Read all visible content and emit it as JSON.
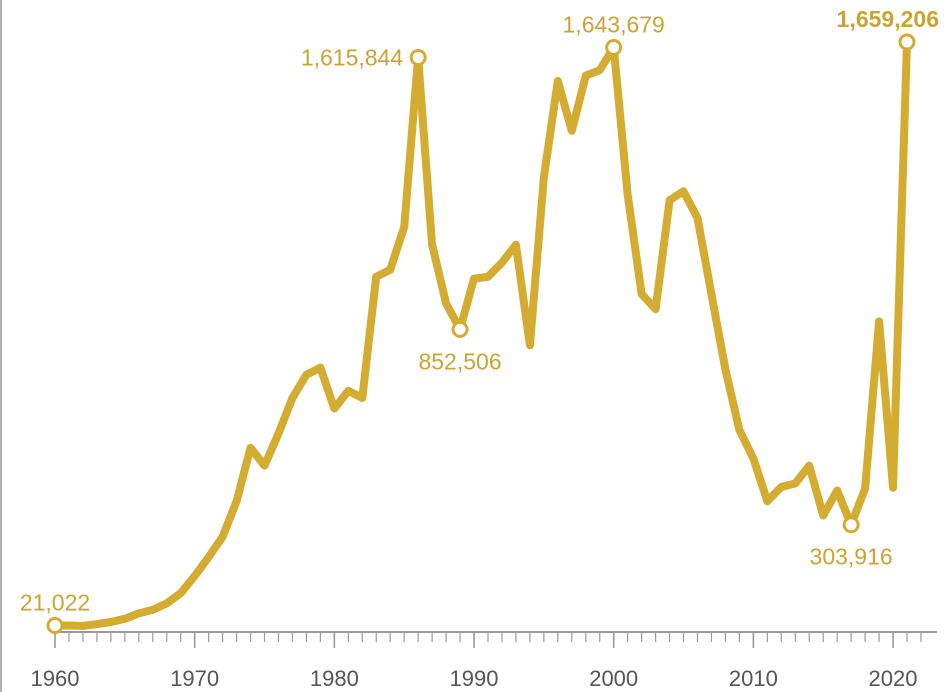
{
  "chart_data": {
    "type": "line",
    "title": "",
    "xlabel": "",
    "ylabel": "",
    "xlim": [
      1960,
      2021
    ],
    "ylim": [
      0,
      1700000
    ],
    "grid": false,
    "legend": "none",
    "colors": {
      "line": "#d4ac32",
      "axis": "#9a9a9a",
      "tick_text": "#555555",
      "annotation": "#c9a434"
    },
    "x_ticks": [
      "1960",
      "1970",
      "1980",
      "1990",
      "2000",
      "2010",
      "2020"
    ],
    "series": [
      {
        "x": [
          1960,
          1961,
          1962,
          1963,
          1964,
          1965,
          1966,
          1967,
          1968,
          1969,
          1970,
          1971,
          1972,
          1973,
          1974,
          1975,
          1976,
          1977,
          1978,
          1979,
          1980,
          1981,
          1982,
          1983,
          1984,
          1985,
          1986,
          1987,
          1988,
          1989,
          1990,
          1991,
          1992,
          1993,
          1994,
          1995,
          1996,
          1997,
          1998,
          1999,
          2000,
          2001,
          2002,
          2003,
          2004,
          2005,
          2006,
          2007,
          2008,
          2009,
          2010,
          2011,
          2012,
          2013,
          2014,
          2015,
          2016,
          2017,
          2018,
          2019,
          2020,
          2021
        ],
        "values": [
          21022,
          21000,
          20000,
          25000,
          31000,
          40000,
          55000,
          65000,
          83000,
          112000,
          160000,
          213000,
          270000,
          370000,
          520000,
          470000,
          560000,
          660000,
          725000,
          745000,
          630000,
          680000,
          660000,
          1000000,
          1020000,
          1140000,
          1615844,
          1090000,
          925000,
          852506,
          995000,
          1000000,
          1040000,
          1090000,
          808000,
          1280000,
          1550000,
          1410000,
          1565000,
          1580000,
          1643679,
          1230000,
          952000,
          909000,
          1215000,
          1240000,
          1165000,
          950000,
          740000,
          570000,
          490000,
          370000,
          410000,
          420000,
          470000,
          330000,
          400000,
          303916,
          405000,
          875000,
          408000,
          1659206
        ]
      }
    ],
    "annotations": [
      {
        "x": 1960,
        "text": "21,022",
        "position": "above",
        "bold": false
      },
      {
        "x": 1986,
        "text": "1,615,844",
        "position": "left",
        "bold": false
      },
      {
        "x": 1989,
        "text": "852,506",
        "position": "below",
        "bold": false
      },
      {
        "x": 2000,
        "text": "1,643,679",
        "position": "above",
        "bold": false
      },
      {
        "x": 2017,
        "text": "303,916",
        "position": "below",
        "bold": false
      },
      {
        "x": 2021,
        "text": "1,659,206",
        "position": "above",
        "bold": true
      }
    ]
  }
}
